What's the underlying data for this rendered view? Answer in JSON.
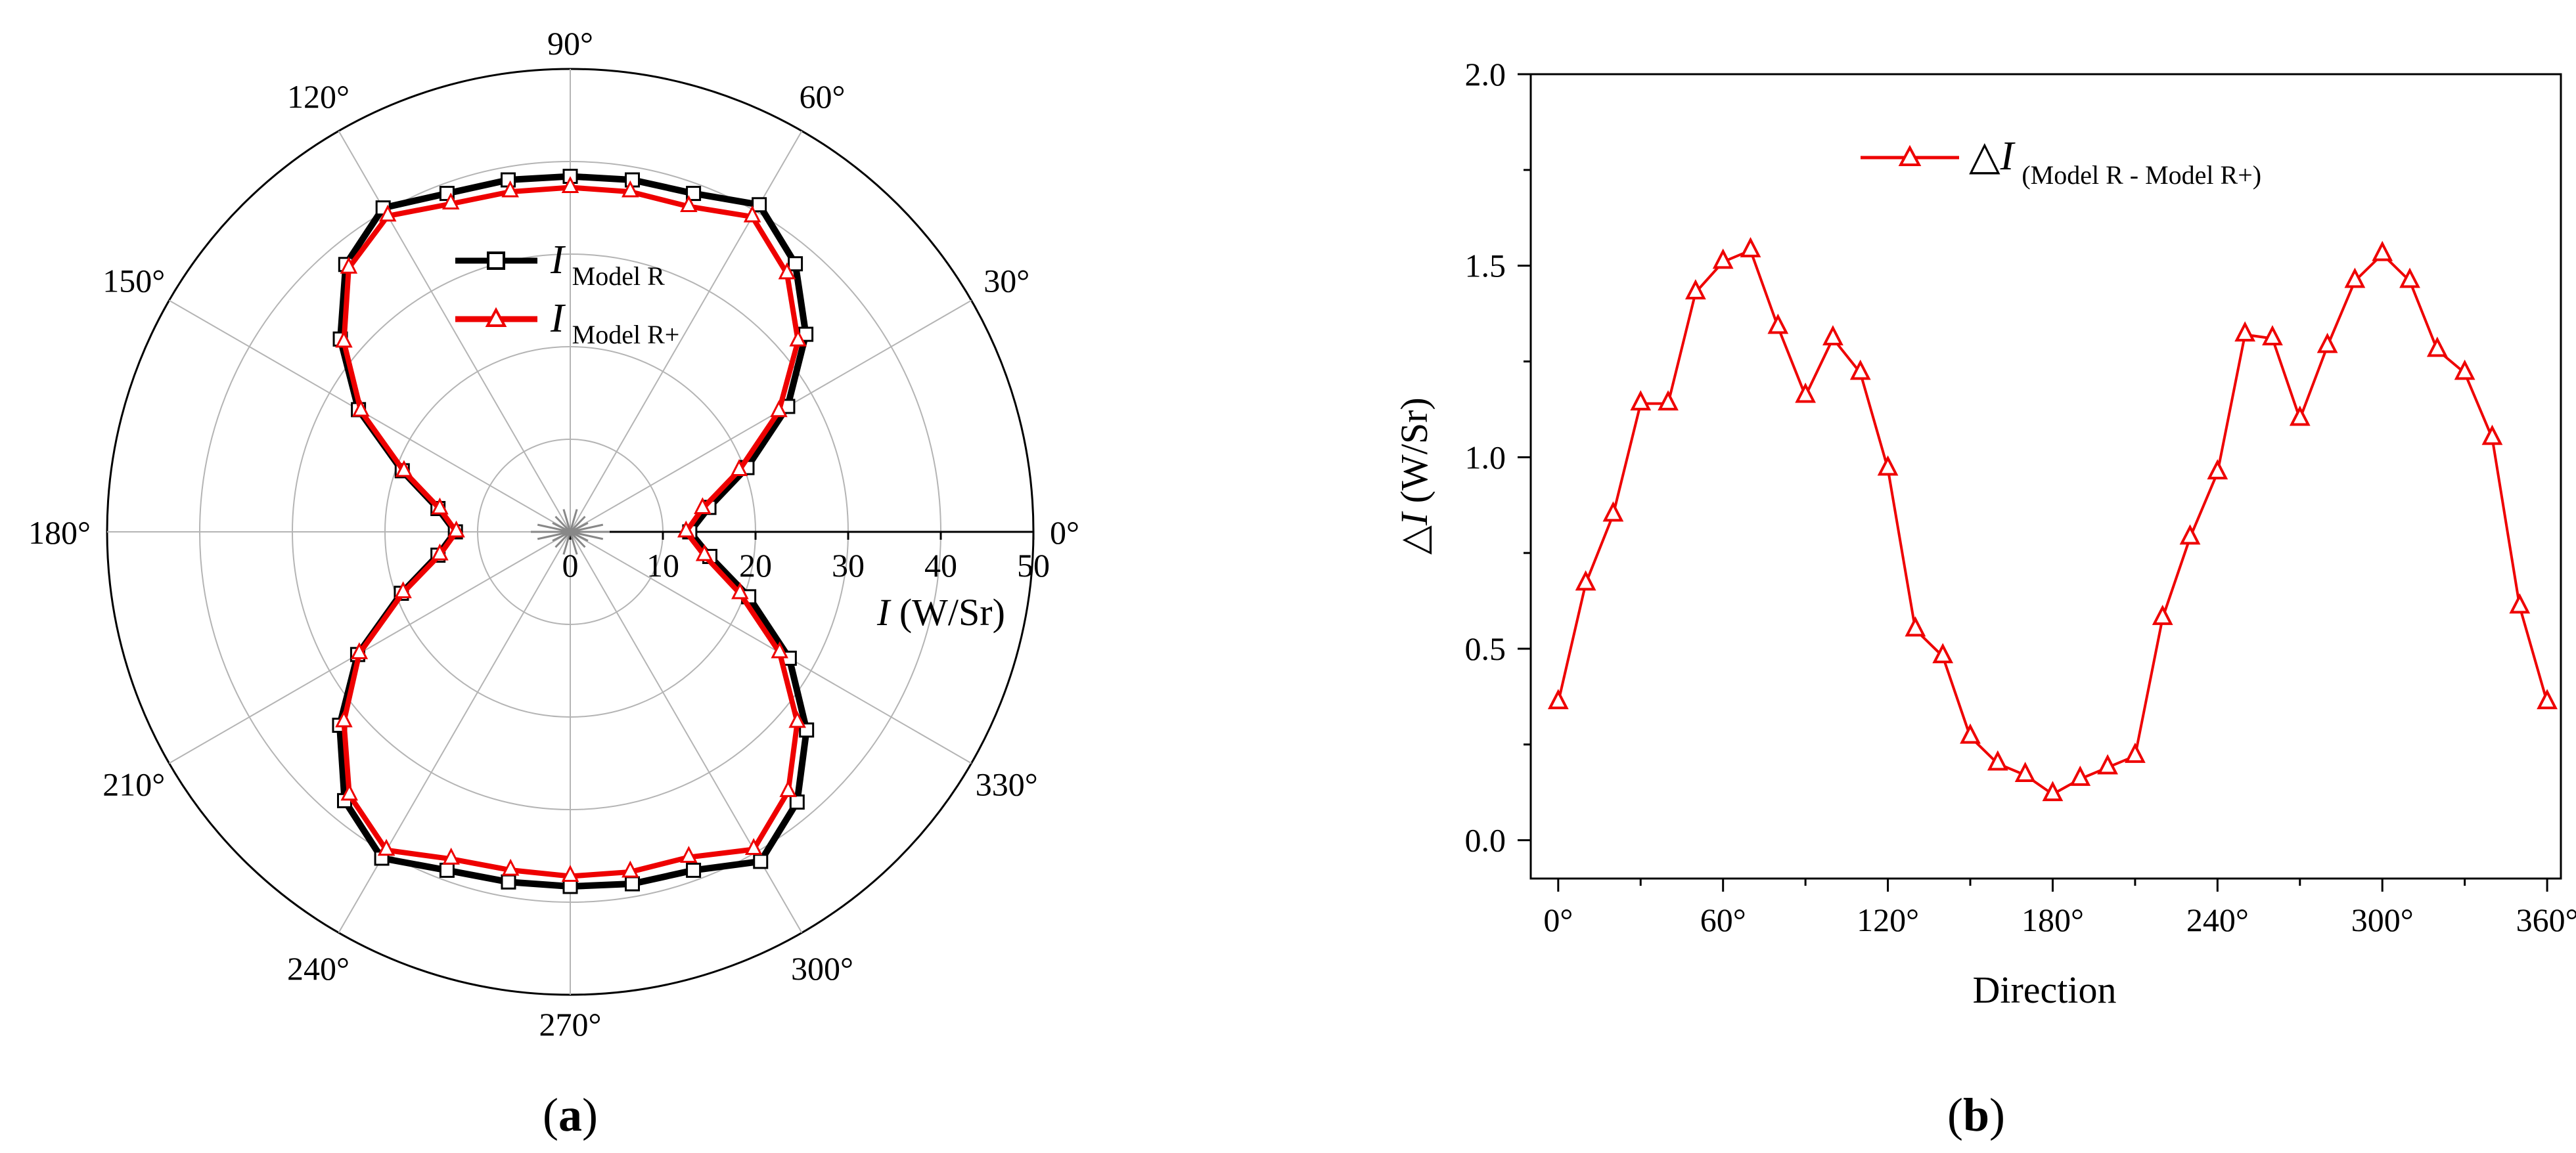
{
  "figure": {
    "panel_a_label": "a",
    "panel_b_label": "b",
    "colors": {
      "model_r": "#000000",
      "model_r_plus": "#ee0000",
      "delta": "#ee0000",
      "grid": "#b4b4b4"
    }
  },
  "chart_data": [
    {
      "type": "line",
      "coordinate_system": "polar",
      "title": "",
      "radial_axis": {
        "label_symbol": "I",
        "label_unit": " (W/Sr)",
        "range": [
          0,
          50
        ],
        "ticks": [
          "0",
          "10",
          "20",
          "30",
          "40",
          "50"
        ]
      },
      "angular_axis": {
        "ticks_deg": [
          0,
          30,
          60,
          90,
          120,
          150,
          180,
          210,
          240,
          270,
          300,
          330
        ],
        "tick_labels": [
          "0°",
          "30°",
          "60°",
          "90°",
          "120°",
          "150°",
          "180°",
          "210°",
          "240°",
          "270°",
          "300°",
          "330°"
        ]
      },
      "grid": true,
      "legend_position": "upper-left-inside",
      "theta_deg": [
        0,
        10,
        20,
        30,
        40,
        50,
        60,
        70,
        80,
        90,
        100,
        110,
        120,
        130,
        140,
        150,
        160,
        170,
        180,
        190,
        200,
        210,
        220,
        230,
        240,
        250,
        260,
        270,
        280,
        290,
        300,
        310,
        320,
        330,
        340,
        350
      ],
      "series": [
        {
          "name_main": "I",
          "name_sub": "Model R",
          "marker": "square",
          "values": [
            12.9,
            15.2,
            20.3,
            27.1,
            33.2,
            37.8,
            40.8,
            38.9,
            38.6,
            38.4,
            38.6,
            38.9,
            40.4,
            37.7,
            32.4,
            26.4,
            19.3,
            14.5,
            12.4,
            14.5,
            19.4,
            26.5,
            32.5,
            37.9,
            40.7,
            38.9,
            38.4,
            38.3,
            38.6,
            38.9,
            41.1,
            38.1,
            33.3,
            27.3,
            20.5,
            15.3
          ]
        },
        {
          "name_main": "I",
          "name_sub": "Model R+",
          "marker": "triangle",
          "values": [
            12.5,
            14.5,
            19.4,
            26.0,
            32.1,
            36.4,
            39.3,
            37.4,
            37.3,
            37.2,
            37.3,
            37.7,
            39.4,
            37.2,
            31.9,
            26.1,
            19.1,
            14.3,
            12.3,
            14.3,
            19.2,
            26.3,
            31.9,
            37.1,
            39.7,
            37.6,
            37.1,
            37.2,
            37.3,
            37.4,
            39.6,
            36.6,
            32.0,
            26.1,
            19.5,
            14.7
          ]
        }
      ]
    },
    {
      "type": "line",
      "title": "",
      "xlabel": "Direction",
      "ylabel_symbol": "△I",
      "ylabel_unit": " (W/Sr)",
      "xlim": [
        -10,
        365
      ],
      "ylim": [
        -0.1,
        2.0
      ],
      "x_ticks": [
        0,
        60,
        120,
        180,
        240,
        300,
        360
      ],
      "x_tick_labels": [
        "0°",
        "60°",
        "120°",
        "180°",
        "240°",
        "300°",
        "360°"
      ],
      "y_ticks": [
        0.0,
        0.5,
        1.0,
        1.5,
        2.0
      ],
      "y_tick_labels": [
        "0.0",
        "0.5",
        "1.0",
        "1.5",
        "2.0"
      ],
      "grid": false,
      "legend_position": "top-center",
      "x": [
        0,
        10,
        20,
        30,
        40,
        50,
        60,
        70,
        80,
        90,
        100,
        110,
        120,
        130,
        140,
        150,
        160,
        170,
        180,
        190,
        200,
        210,
        220,
        230,
        240,
        250,
        260,
        270,
        280,
        290,
        300,
        310,
        320,
        330,
        340,
        350,
        360
      ],
      "series": [
        {
          "name_main": "△I",
          "name_sub": "(Model R - Model R+)",
          "marker": "triangle",
          "values": [
            0.36,
            0.67,
            0.85,
            1.14,
            1.14,
            1.43,
            1.51,
            1.54,
            1.34,
            1.16,
            1.31,
            1.22,
            0.97,
            0.55,
            0.48,
            0.27,
            0.2,
            0.17,
            0.12,
            0.16,
            0.19,
            0.22,
            0.58,
            0.79,
            0.96,
            1.32,
            1.31,
            1.1,
            1.29,
            1.46,
            1.53,
            1.46,
            1.28,
            1.22,
            1.05,
            0.61,
            0.36
          ]
        }
      ]
    }
  ]
}
